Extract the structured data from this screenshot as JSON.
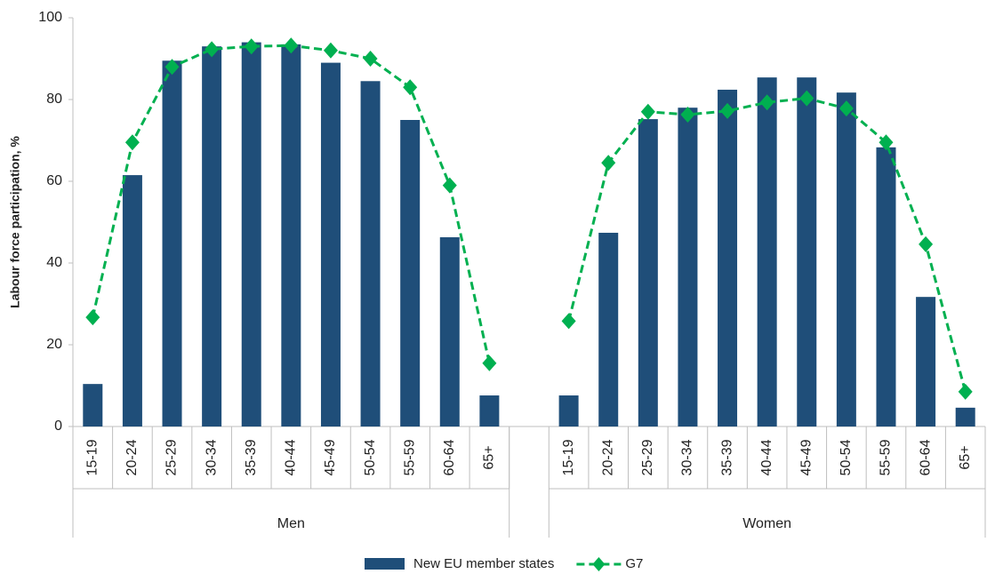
{
  "chart_data": {
    "type": "combo",
    "y_label": "Labour force participation, %",
    "categories": [
      "15-19",
      "20-24",
      "25-29",
      "30-34",
      "35-39",
      "40-44",
      "45-49",
      "50-54",
      "55-59",
      "60-64",
      "65+",
      null,
      "15-19",
      "20-24",
      "25-29",
      "30-34",
      "35-39",
      "40-44",
      "45-49",
      "50-54",
      "55-59",
      "60-64",
      "65+"
    ],
    "groups": [
      "Men",
      "Women"
    ],
    "series": [
      {
        "name": "New EU member states",
        "type": "bar",
        "color": "#1f4e79",
        "values": [
          10.4,
          61.5,
          89.5,
          93,
          94,
          93.5,
          89,
          84.5,
          75,
          46.3,
          7.6,
          null,
          7.6,
          47.4,
          75.2,
          78,
          82.4,
          85.4,
          85.4,
          81.7,
          68.3,
          31.7,
          4.6
        ]
      },
      {
        "name": "G7",
        "type": "line",
        "color": "#00b050",
        "values": [
          26.7,
          69.5,
          88,
          92.3,
          93,
          93.2,
          92,
          90,
          83,
          59,
          15.5,
          null,
          25.8,
          64.5,
          77,
          76.3,
          77.2,
          79.3,
          80.3,
          77.8,
          69.5,
          44.6,
          8.5
        ]
      }
    ],
    "ylim": [
      0,
      100
    ],
    "yticks": [
      0,
      20,
      40,
      60,
      80,
      100
    ],
    "grid": false
  }
}
